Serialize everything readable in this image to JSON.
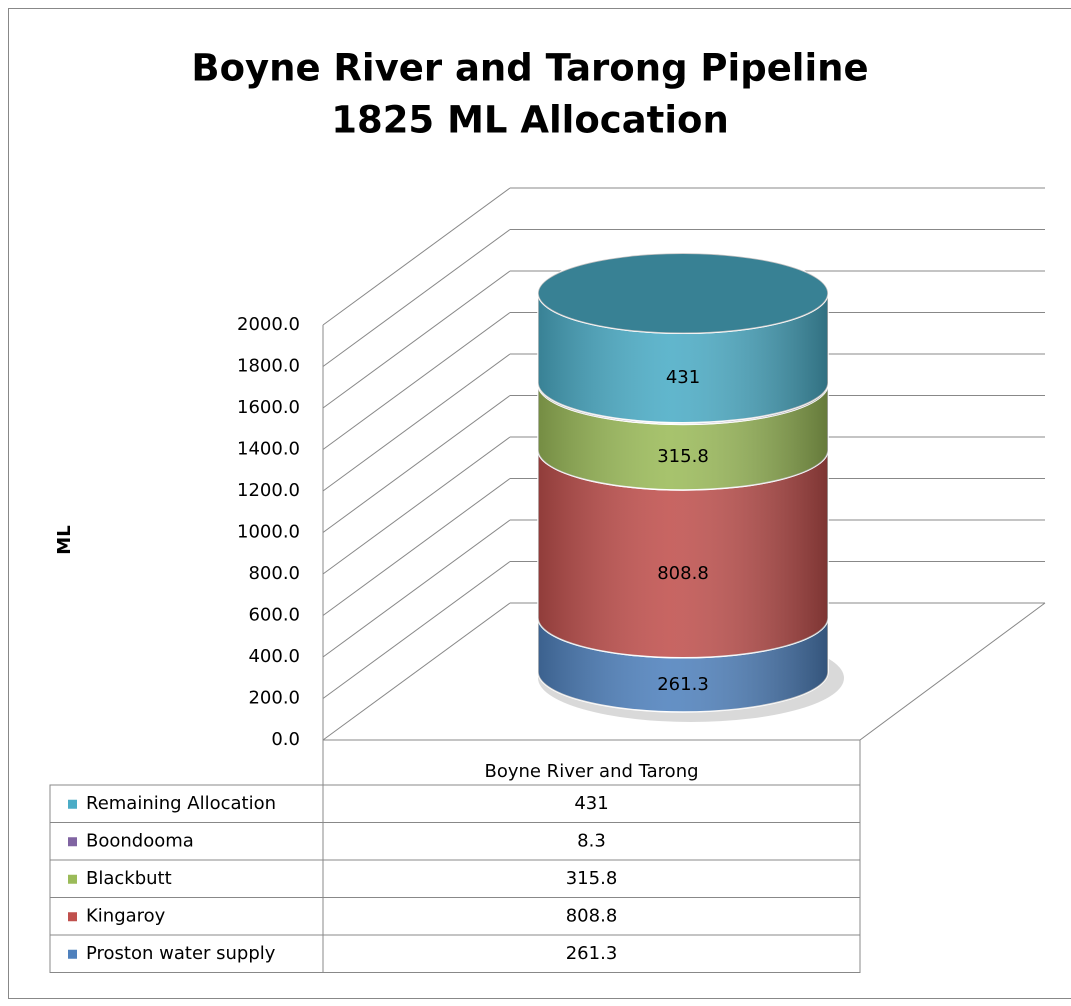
{
  "chart_data": {
    "type": "cylinder-stacked",
    "title": [
      "Boyne River and Tarong Pipeline",
      "1825 ML Allocation"
    ],
    "ylabel": "ML",
    "categories": [
      "Boyne River and Tarong"
    ],
    "series": [
      {
        "name": "Proston water supply",
        "color": "#4f81bd",
        "values": [
          261.3
        ]
      },
      {
        "name": "Kingaroy",
        "color": "#c0504d",
        "values": [
          808.8
        ]
      },
      {
        "name": "Blackbutt",
        "color": "#9bbb59",
        "values": [
          315.8
        ]
      },
      {
        "name": "Boondooma",
        "color": "#8064a2",
        "values": [
          8.3
        ]
      },
      {
        "name": "Remaining Allocation",
        "color": "#4bacc6",
        "values": [
          431
        ]
      }
    ],
    "data_labels": [
      true,
      true,
      true,
      false,
      true
    ],
    "ylim": [
      0,
      2000
    ],
    "yticks": [
      {
        "value": 0,
        "label": "0.0"
      },
      {
        "value": 200,
        "label": "200.0"
      },
      {
        "value": 400,
        "label": "400.0"
      },
      {
        "value": 600,
        "label": "600.0"
      },
      {
        "value": 800,
        "label": "800.0"
      },
      {
        "value": 1000,
        "label": "1000.0"
      },
      {
        "value": 1200,
        "label": "1200.0"
      },
      {
        "value": 1400,
        "label": "1400.0"
      },
      {
        "value": 1600,
        "label": "1600.0"
      },
      {
        "value": 1800,
        "label": "1800.0"
      },
      {
        "value": 2000,
        "label": "2000.0"
      }
    ],
    "grid": true,
    "data_table": true
  }
}
